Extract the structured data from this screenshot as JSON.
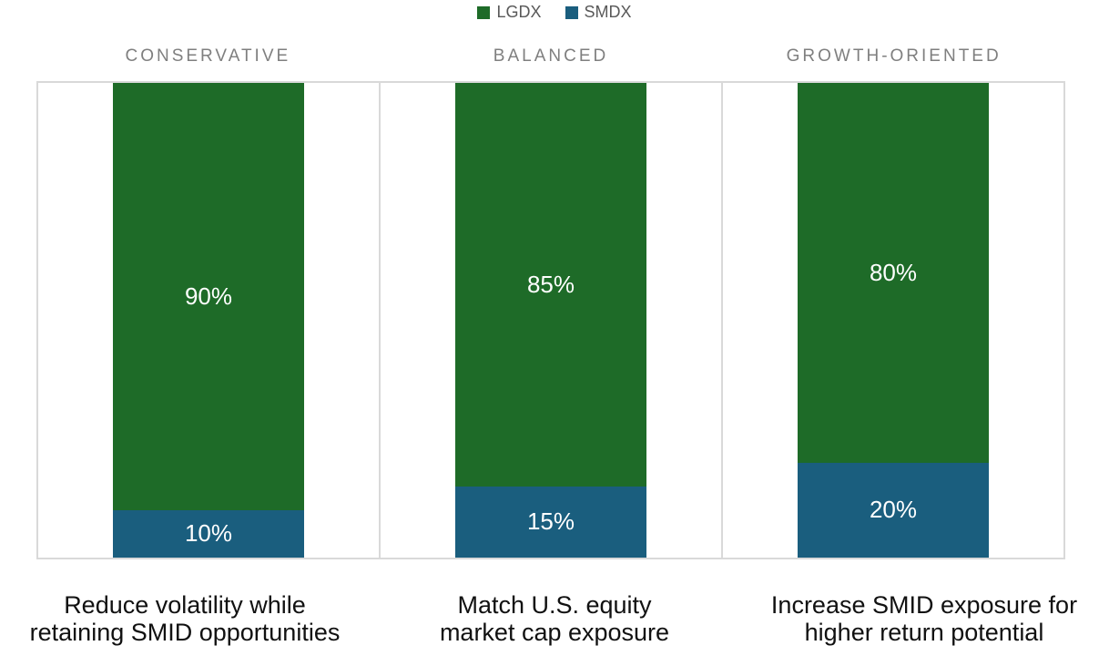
{
  "chart_data": {
    "type": "bar",
    "stacked": true,
    "orientation": "vertical",
    "categories": [
      "CONSERVATIVE",
      "BALANCED",
      "GROWTH-ORIENTED"
    ],
    "series": [
      {
        "name": "LGDX",
        "color": "#1e6b28",
        "values": [
          90,
          85,
          80
        ],
        "value_labels": [
          "90%",
          "85%",
          "80%"
        ]
      },
      {
        "name": "SMDX",
        "color": "#1a5e7e",
        "values": [
          10,
          15,
          20
        ],
        "value_labels": [
          "10%",
          "15%",
          "20%"
        ]
      }
    ],
    "ylim": [
      0,
      100
    ],
    "grid": false,
    "legend_position": "top-center",
    "annotations": [
      {
        "category": "CONSERVATIVE",
        "text_lines": [
          "Reduce volatility while",
          "retaining SMID opportunities"
        ]
      },
      {
        "category": "BALANCED",
        "text_lines": [
          "Match U.S. equity",
          "market cap exposure"
        ]
      },
      {
        "category": "GROWTH-ORIENTED",
        "text_lines": [
          "Increase SMID exposure for",
          "higher return potential"
        ]
      }
    ]
  },
  "colors": {
    "background": "#ffffff",
    "header_text": "#7f7f7f",
    "legend_text": "#595959",
    "panel_border": "#d9d9d9",
    "value_label_text": "#ffffff",
    "annotation_text": "#111111"
  }
}
